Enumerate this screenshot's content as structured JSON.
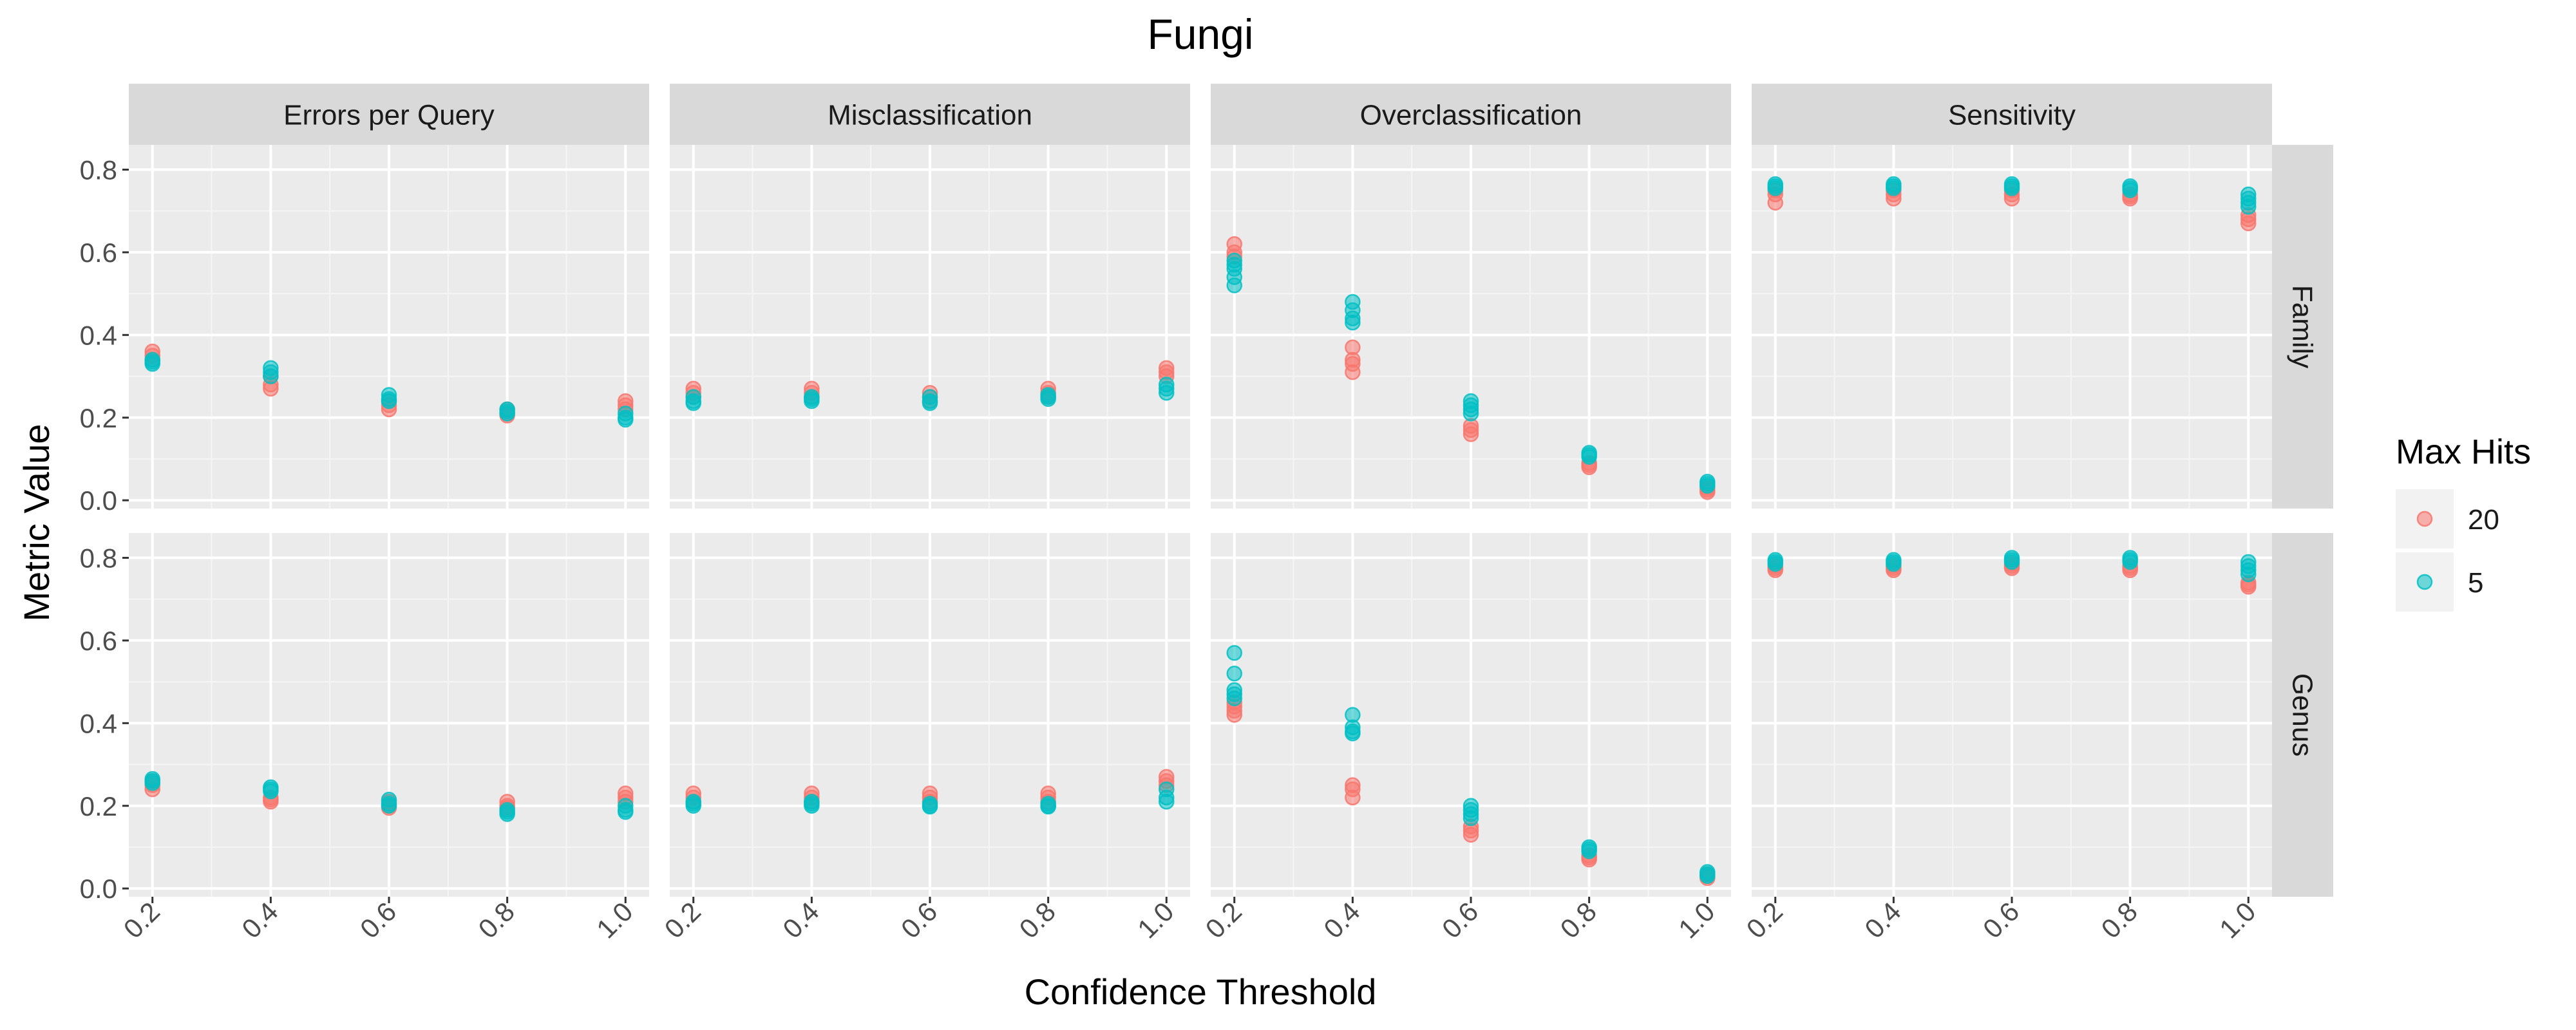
{
  "chart_data": {
    "type": "scatter",
    "title": "Fungi",
    "xlabel": "Confidence Threshold",
    "ylabel": "Metric Value",
    "xlim": [
      0.16,
      1.04
    ],
    "ylim": [
      -0.02,
      0.86
    ],
    "x_ticks": [
      "0.2",
      "0.4",
      "0.6",
      "0.8",
      "1.0"
    ],
    "y_ticks": [
      "0.0",
      "0.2",
      "0.4",
      "0.6",
      "0.8"
    ],
    "grid": true,
    "columns": [
      "Errors per Query",
      "Misclassification",
      "Overclassification",
      "Sensitivity"
    ],
    "rows": [
      "Family",
      "Genus"
    ],
    "legend": {
      "title": "Max Hits",
      "placement": "right",
      "entries": [
        {
          "label": "20",
          "color": "#F8766D"
        },
        {
          "label": "5",
          "color": "#00BFC4"
        }
      ]
    },
    "series": [
      {
        "name": "20",
        "color": "#F8766D",
        "panels": {
          "Errors per Query|Family": [
            [
              0.2,
              0.36
            ],
            [
              0.2,
              0.35
            ],
            [
              0.2,
              0.34
            ],
            [
              0.4,
              0.3
            ],
            [
              0.4,
              0.28
            ],
            [
              0.4,
              0.27
            ],
            [
              0.6,
              0.24
            ],
            [
              0.6,
              0.23
            ],
            [
              0.6,
              0.22
            ],
            [
              0.8,
              0.22
            ],
            [
              0.8,
              0.21
            ],
            [
              0.8,
              0.205
            ],
            [
              1.0,
              0.24
            ],
            [
              1.0,
              0.23
            ],
            [
              1.0,
              0.22
            ]
          ],
          "Misclassification|Family": [
            [
              0.2,
              0.27
            ],
            [
              0.2,
              0.26
            ],
            [
              0.2,
              0.25
            ],
            [
              0.4,
              0.27
            ],
            [
              0.4,
              0.26
            ],
            [
              0.4,
              0.25
            ],
            [
              0.6,
              0.26
            ],
            [
              0.6,
              0.25
            ],
            [
              0.6,
              0.24
            ],
            [
              0.8,
              0.27
            ],
            [
              0.8,
              0.26
            ],
            [
              0.8,
              0.25
            ],
            [
              1.0,
              0.32
            ],
            [
              1.0,
              0.31
            ],
            [
              1.0,
              0.3
            ]
          ],
          "Overclassification|Family": [
            [
              0.2,
              0.62
            ],
            [
              0.2,
              0.6
            ],
            [
              0.2,
              0.59
            ],
            [
              0.4,
              0.37
            ],
            [
              0.4,
              0.34
            ],
            [
              0.4,
              0.33
            ],
            [
              0.4,
              0.31
            ],
            [
              0.6,
              0.18
            ],
            [
              0.6,
              0.17
            ],
            [
              0.6,
              0.16
            ],
            [
              0.8,
              0.09
            ],
            [
              0.8,
              0.085
            ],
            [
              0.8,
              0.08
            ],
            [
              1.0,
              0.03
            ],
            [
              1.0,
              0.025
            ],
            [
              1.0,
              0.02
            ]
          ],
          "Sensitivity|Family": [
            [
              0.2,
              0.75
            ],
            [
              0.2,
              0.74
            ],
            [
              0.2,
              0.72
            ],
            [
              0.4,
              0.75
            ],
            [
              0.4,
              0.74
            ],
            [
              0.4,
              0.73
            ],
            [
              0.6,
              0.75
            ],
            [
              0.6,
              0.74
            ],
            [
              0.6,
              0.73
            ],
            [
              0.8,
              0.74
            ],
            [
              0.8,
              0.735
            ],
            [
              0.8,
              0.73
            ],
            [
              1.0,
              0.69
            ],
            [
              1.0,
              0.68
            ],
            [
              1.0,
              0.67
            ]
          ],
          "Errors per Query|Genus": [
            [
              0.2,
              0.26
            ],
            [
              0.2,
              0.25
            ],
            [
              0.2,
              0.24
            ],
            [
              0.4,
              0.22
            ],
            [
              0.4,
              0.215
            ],
            [
              0.4,
              0.21
            ],
            [
              0.6,
              0.21
            ],
            [
              0.6,
              0.2
            ],
            [
              0.6,
              0.195
            ],
            [
              0.8,
              0.21
            ],
            [
              0.8,
              0.2
            ],
            [
              0.8,
              0.195
            ],
            [
              1.0,
              0.23
            ],
            [
              1.0,
              0.22
            ],
            [
              1.0,
              0.21
            ]
          ],
          "Misclassification|Genus": [
            [
              0.2,
              0.23
            ],
            [
              0.2,
              0.22
            ],
            [
              0.2,
              0.21
            ],
            [
              0.4,
              0.23
            ],
            [
              0.4,
              0.22
            ],
            [
              0.4,
              0.21
            ],
            [
              0.6,
              0.23
            ],
            [
              0.6,
              0.22
            ],
            [
              0.6,
              0.21
            ],
            [
              0.8,
              0.23
            ],
            [
              0.8,
              0.22
            ],
            [
              0.8,
              0.21
            ],
            [
              1.0,
              0.27
            ],
            [
              1.0,
              0.26
            ],
            [
              1.0,
              0.25
            ]
          ],
          "Overclassification|Genus": [
            [
              0.2,
              0.45
            ],
            [
              0.2,
              0.44
            ],
            [
              0.2,
              0.43
            ],
            [
              0.2,
              0.42
            ],
            [
              0.4,
              0.25
            ],
            [
              0.4,
              0.24
            ],
            [
              0.4,
              0.22
            ],
            [
              0.6,
              0.15
            ],
            [
              0.6,
              0.14
            ],
            [
              0.6,
              0.13
            ],
            [
              0.8,
              0.08
            ],
            [
              0.8,
              0.075
            ],
            [
              0.8,
              0.07
            ],
            [
              1.0,
              0.035
            ],
            [
              1.0,
              0.03
            ],
            [
              1.0,
              0.025
            ]
          ],
          "Sensitivity|Genus": [
            [
              0.2,
              0.78
            ],
            [
              0.2,
              0.775
            ],
            [
              0.2,
              0.77
            ],
            [
              0.4,
              0.78
            ],
            [
              0.4,
              0.775
            ],
            [
              0.4,
              0.77
            ],
            [
              0.6,
              0.785
            ],
            [
              0.6,
              0.78
            ],
            [
              0.6,
              0.775
            ],
            [
              0.8,
              0.78
            ],
            [
              0.8,
              0.775
            ],
            [
              0.8,
              0.77
            ],
            [
              1.0,
              0.74
            ],
            [
              1.0,
              0.735
            ],
            [
              1.0,
              0.73
            ]
          ]
        }
      },
      {
        "name": "5",
        "color": "#00BFC4",
        "panels": {
          "Errors per Query|Family": [
            [
              0.2,
              0.34
            ],
            [
              0.2,
              0.335
            ],
            [
              0.2,
              0.33
            ],
            [
              0.4,
              0.32
            ],
            [
              0.4,
              0.31
            ],
            [
              0.4,
              0.3
            ],
            [
              0.6,
              0.255
            ],
            [
              0.6,
              0.245
            ],
            [
              0.6,
              0.24
            ],
            [
              0.8,
              0.22
            ],
            [
              0.8,
              0.215
            ],
            [
              0.8,
              0.21
            ],
            [
              1.0,
              0.21
            ],
            [
              1.0,
              0.2
            ],
            [
              1.0,
              0.195
            ]
          ],
          "Misclassification|Family": [
            [
              0.2,
              0.25
            ],
            [
              0.2,
              0.24
            ],
            [
              0.2,
              0.235
            ],
            [
              0.4,
              0.25
            ],
            [
              0.4,
              0.245
            ],
            [
              0.4,
              0.24
            ],
            [
              0.6,
              0.25
            ],
            [
              0.6,
              0.24
            ],
            [
              0.6,
              0.235
            ],
            [
              0.8,
              0.255
            ],
            [
              0.8,
              0.25
            ],
            [
              0.8,
              0.245
            ],
            [
              1.0,
              0.28
            ],
            [
              1.0,
              0.27
            ],
            [
              1.0,
              0.26
            ]
          ],
          "Overclassification|Family": [
            [
              0.2,
              0.58
            ],
            [
              0.2,
              0.57
            ],
            [
              0.2,
              0.56
            ],
            [
              0.2,
              0.54
            ],
            [
              0.2,
              0.52
            ],
            [
              0.4,
              0.48
            ],
            [
              0.4,
              0.46
            ],
            [
              0.4,
              0.44
            ],
            [
              0.4,
              0.43
            ],
            [
              0.6,
              0.24
            ],
            [
              0.6,
              0.23
            ],
            [
              0.6,
              0.22
            ],
            [
              0.6,
              0.21
            ],
            [
              0.8,
              0.115
            ],
            [
              0.8,
              0.11
            ],
            [
              0.8,
              0.105
            ],
            [
              1.0,
              0.045
            ],
            [
              1.0,
              0.04
            ],
            [
              1.0,
              0.035
            ]
          ],
          "Sensitivity|Family": [
            [
              0.2,
              0.765
            ],
            [
              0.2,
              0.76
            ],
            [
              0.2,
              0.755
            ],
            [
              0.4,
              0.765
            ],
            [
              0.4,
              0.76
            ],
            [
              0.4,
              0.755
            ],
            [
              0.6,
              0.765
            ],
            [
              0.6,
              0.76
            ],
            [
              0.6,
              0.755
            ],
            [
              0.8,
              0.76
            ],
            [
              0.8,
              0.755
            ],
            [
              0.8,
              0.75
            ],
            [
              1.0,
              0.74
            ],
            [
              1.0,
              0.73
            ],
            [
              1.0,
              0.72
            ],
            [
              1.0,
              0.71
            ]
          ],
          "Errors per Query|Genus": [
            [
              0.2,
              0.265
            ],
            [
              0.2,
              0.26
            ],
            [
              0.2,
              0.255
            ],
            [
              0.4,
              0.245
            ],
            [
              0.4,
              0.24
            ],
            [
              0.4,
              0.235
            ],
            [
              0.6,
              0.215
            ],
            [
              0.6,
              0.205
            ],
            [
              0.6,
              0.2
            ],
            [
              0.8,
              0.19
            ],
            [
              0.8,
              0.185
            ],
            [
              0.8,
              0.18
            ],
            [
              1.0,
              0.2
            ],
            [
              1.0,
              0.19
            ],
            [
              1.0,
              0.185
            ]
          ],
          "Misclassification|Genus": [
            [
              0.2,
              0.21
            ],
            [
              0.2,
              0.205
            ],
            [
              0.2,
              0.2
            ],
            [
              0.4,
              0.21
            ],
            [
              0.4,
              0.205
            ],
            [
              0.4,
              0.2
            ],
            [
              0.6,
              0.205
            ],
            [
              0.6,
              0.2
            ],
            [
              0.6,
              0.198
            ],
            [
              0.8,
              0.205
            ],
            [
              0.8,
              0.2
            ],
            [
              0.8,
              0.198
            ],
            [
              1.0,
              0.24
            ],
            [
              1.0,
              0.22
            ],
            [
              1.0,
              0.21
            ]
          ],
          "Overclassification|Genus": [
            [
              0.2,
              0.57
            ],
            [
              0.2,
              0.52
            ],
            [
              0.2,
              0.48
            ],
            [
              0.2,
              0.47
            ],
            [
              0.2,
              0.46
            ],
            [
              0.4,
              0.42
            ],
            [
              0.4,
              0.39
            ],
            [
              0.4,
              0.38
            ],
            [
              0.4,
              0.375
            ],
            [
              0.6,
              0.2
            ],
            [
              0.6,
              0.19
            ],
            [
              0.6,
              0.18
            ],
            [
              0.6,
              0.17
            ],
            [
              0.8,
              0.1
            ],
            [
              0.8,
              0.095
            ],
            [
              0.8,
              0.09
            ],
            [
              1.0,
              0.04
            ],
            [
              1.0,
              0.035
            ],
            [
              1.0,
              0.03
            ]
          ],
          "Sensitivity|Genus": [
            [
              0.2,
              0.795
            ],
            [
              0.2,
              0.79
            ],
            [
              0.2,
              0.785
            ],
            [
              0.4,
              0.795
            ],
            [
              0.4,
              0.79
            ],
            [
              0.4,
              0.785
            ],
            [
              0.6,
              0.8
            ],
            [
              0.6,
              0.795
            ],
            [
              0.6,
              0.79
            ],
            [
              0.8,
              0.8
            ],
            [
              0.8,
              0.795
            ],
            [
              0.8,
              0.79
            ],
            [
              1.0,
              0.79
            ],
            [
              1.0,
              0.78
            ],
            [
              1.0,
              0.77
            ],
            [
              1.0,
              0.76
            ]
          ]
        }
      }
    ]
  }
}
